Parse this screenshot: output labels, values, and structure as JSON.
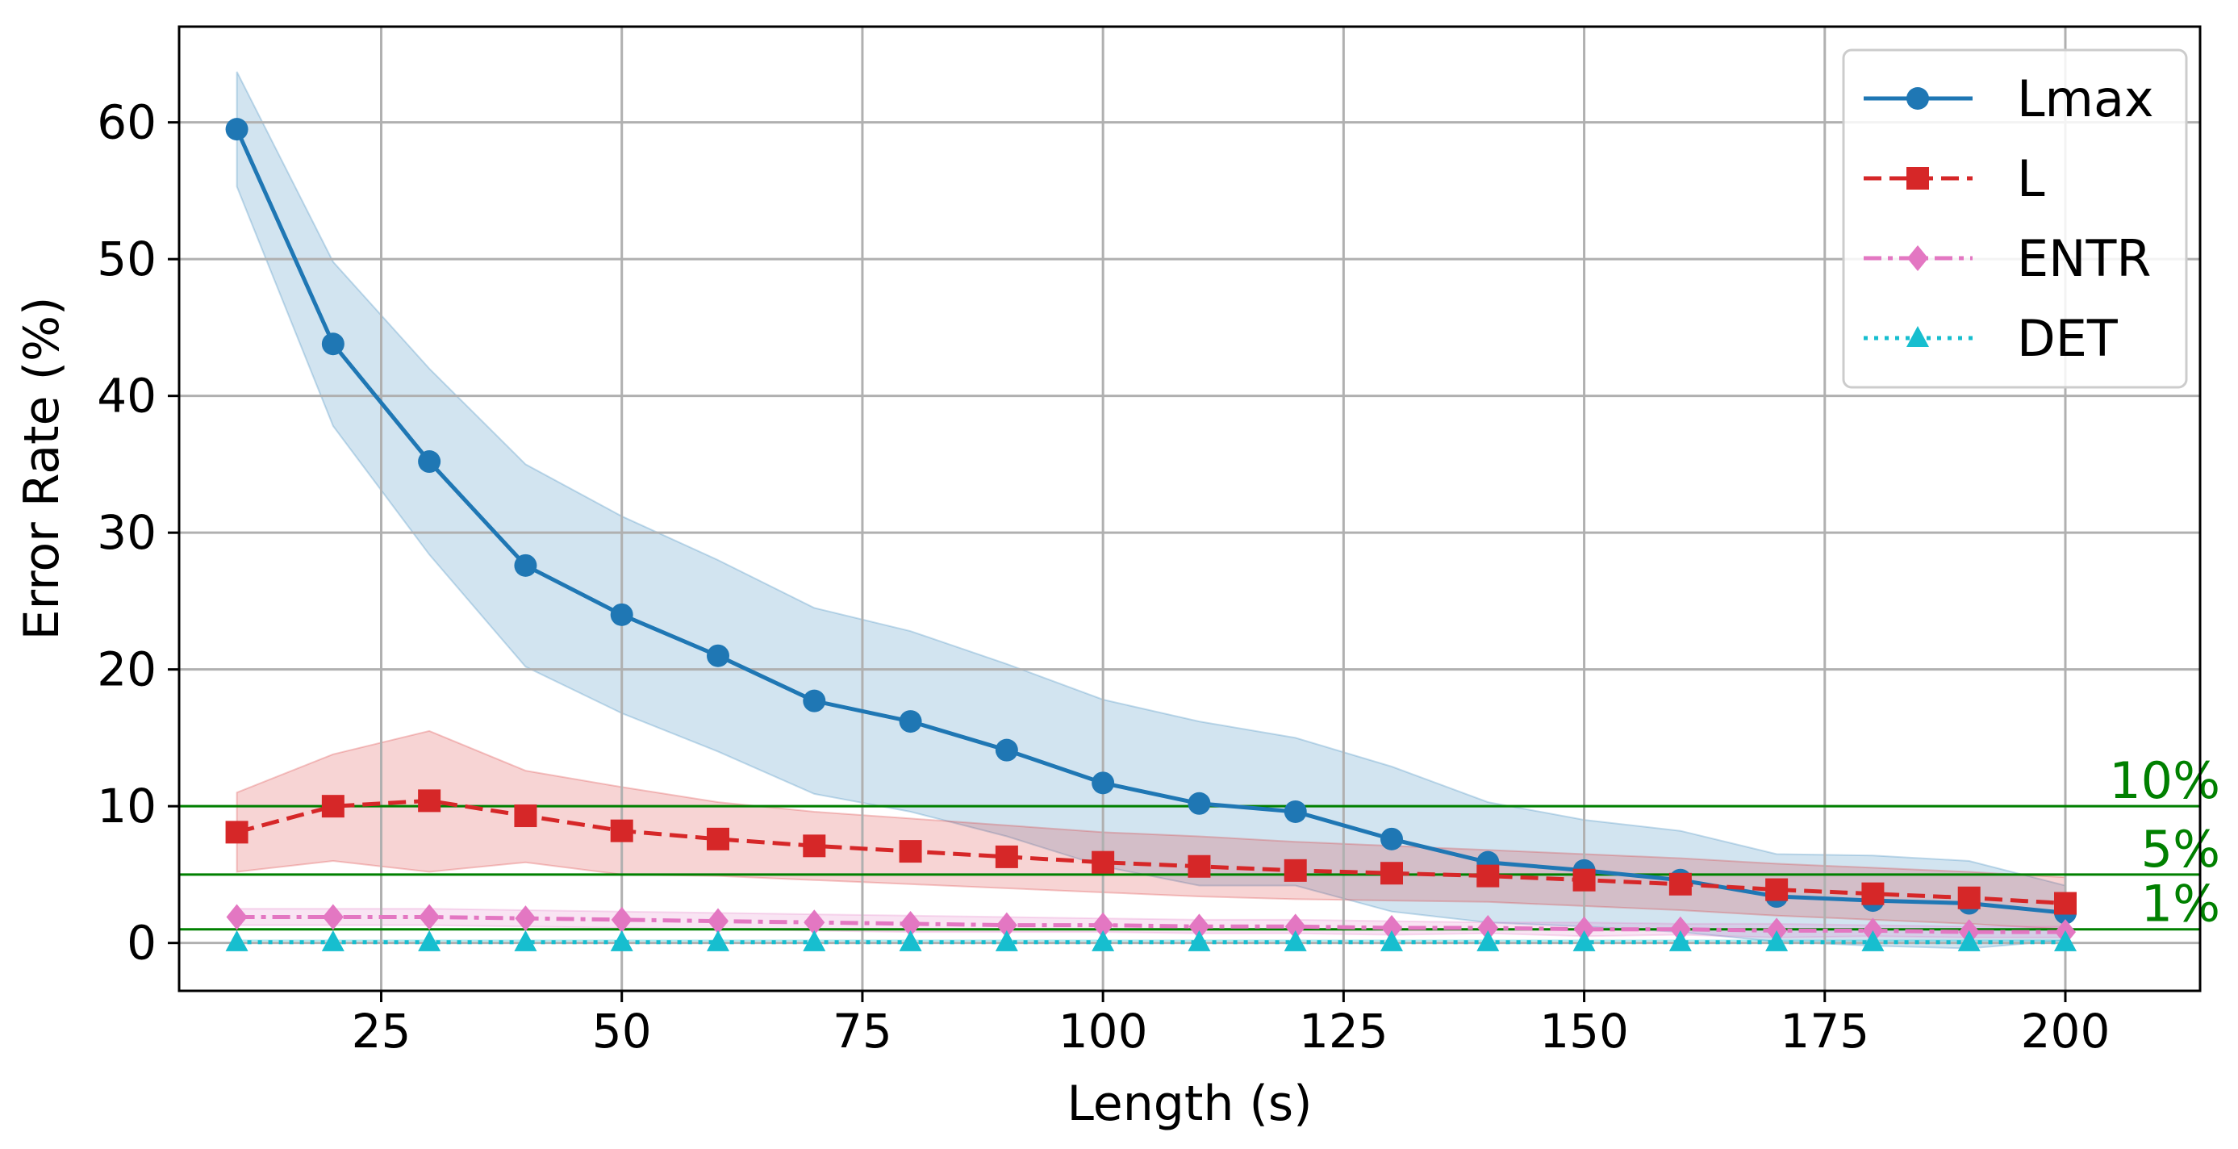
{
  "chart_data": {
    "type": "line",
    "title": "",
    "xlabel": "Length (s)",
    "ylabel": "Error Rate (%)",
    "xlim": [
      4,
      214
    ],
    "ylim": [
      -3.5,
      67
    ],
    "xticks": [
      25,
      50,
      75,
      100,
      125,
      150,
      175,
      200
    ],
    "yticks": [
      0,
      10,
      20,
      30,
      40,
      50,
      60
    ],
    "grid": true,
    "legend_position": "top-right",
    "x": [
      10,
      20,
      30,
      40,
      50,
      60,
      70,
      80,
      90,
      100,
      110,
      120,
      130,
      140,
      150,
      160,
      170,
      180,
      190,
      200
    ],
    "series": [
      {
        "name": "Lmax",
        "color": "#1f77b4",
        "marker": "circle",
        "linestyle": "solid",
        "values": [
          59.5,
          43.8,
          35.2,
          27.6,
          24.0,
          21.0,
          17.7,
          16.2,
          14.1,
          11.7,
          10.2,
          9.6,
          7.6,
          5.9,
          5.3,
          4.6,
          3.4,
          3.1,
          2.9,
          2.2
        ],
        "band_upper": [
          63.7,
          49.8,
          42.0,
          35.0,
          31.2,
          28.0,
          24.5,
          22.8,
          20.4,
          17.8,
          16.2,
          15.0,
          12.9,
          10.3,
          9.0,
          8.2,
          6.5,
          6.4,
          6.0,
          4.2
        ],
        "band_lower": [
          55.3,
          37.8,
          28.4,
          20.2,
          16.8,
          14.0,
          10.9,
          9.6,
          7.8,
          5.6,
          4.2,
          4.2,
          2.3,
          1.5,
          1.2,
          0.8,
          0.1,
          -0.2,
          -0.4,
          0.2
        ]
      },
      {
        "name": "L",
        "color": "#d62728",
        "marker": "square",
        "linestyle": "dashed",
        "values": [
          8.1,
          10.0,
          10.4,
          9.3,
          8.2,
          7.6,
          7.1,
          6.7,
          6.3,
          5.9,
          5.6,
          5.3,
          5.1,
          4.9,
          4.6,
          4.3,
          3.9,
          3.6,
          3.3,
          2.9
        ],
        "band_upper": [
          11.0,
          13.8,
          15.5,
          12.6,
          11.4,
          10.3,
          9.6,
          9.1,
          8.6,
          8.1,
          7.8,
          7.4,
          7.1,
          6.8,
          6.5,
          6.2,
          5.8,
          5.5,
          5.2,
          4.8
        ],
        "band_lower": [
          5.2,
          6.0,
          5.2,
          5.9,
          5.0,
          4.9,
          4.6,
          4.3,
          4.0,
          3.7,
          3.4,
          3.2,
          3.1,
          3.0,
          2.7,
          2.4,
          2.0,
          1.7,
          1.4,
          1.0
        ]
      },
      {
        "name": "ENTR",
        "color": "#e377c2",
        "marker": "diamond",
        "linestyle": "dashdot",
        "values": [
          1.9,
          1.9,
          1.9,
          1.8,
          1.7,
          1.6,
          1.5,
          1.4,
          1.3,
          1.3,
          1.2,
          1.2,
          1.1,
          1.1,
          1.0,
          1.0,
          0.9,
          0.9,
          0.8,
          0.8
        ],
        "band_upper": [
          2.5,
          2.5,
          2.5,
          2.4,
          2.3,
          2.2,
          2.1,
          2.0,
          1.9,
          1.8,
          1.7,
          1.7,
          1.6,
          1.5,
          1.5,
          1.4,
          1.4,
          1.3,
          1.2,
          1.2
        ],
        "band_lower": [
          1.3,
          1.3,
          1.3,
          1.2,
          1.1,
          1.0,
          0.9,
          0.8,
          0.8,
          0.8,
          0.7,
          0.7,
          0.6,
          0.7,
          0.5,
          0.6,
          0.4,
          0.5,
          0.4,
          0.4
        ]
      },
      {
        "name": "DET",
        "color": "#17becf",
        "marker": "triangle",
        "linestyle": "dotted",
        "values": [
          0.05,
          0.05,
          0.05,
          0.05,
          0.05,
          0.05,
          0.05,
          0.05,
          0.05,
          0.05,
          0.05,
          0.05,
          0.05,
          0.05,
          0.05,
          0.05,
          0.05,
          0.05,
          0.05,
          0.05
        ],
        "band_upper": [
          0.2,
          0.2,
          0.2,
          0.2,
          0.2,
          0.2,
          0.2,
          0.2,
          0.2,
          0.2,
          0.2,
          0.2,
          0.2,
          0.2,
          0.2,
          0.2,
          0.2,
          0.2,
          0.2,
          0.2
        ],
        "band_lower": [
          0.0,
          0.0,
          0.0,
          0.0,
          0.0,
          0.0,
          0.0,
          0.0,
          0.0,
          0.0,
          0.0,
          0.0,
          0.0,
          0.0,
          0.0,
          0.0,
          0.0,
          0.0,
          0.0,
          0.0
        ]
      }
    ],
    "reference_lines": [
      {
        "y": 10,
        "label": "10%",
        "color": "#008000"
      },
      {
        "y": 5,
        "label": "5%",
        "color": "#008000"
      },
      {
        "y": 1,
        "label": "1%",
        "color": "#008000"
      }
    ]
  }
}
